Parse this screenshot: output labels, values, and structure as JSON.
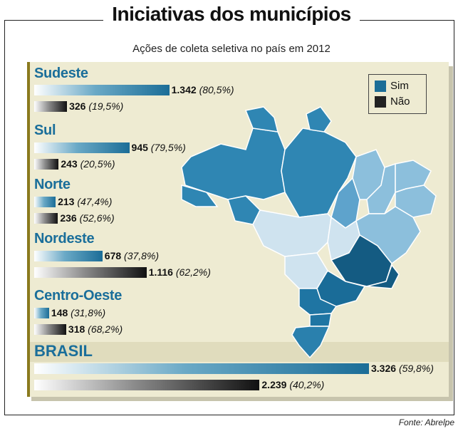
{
  "title": "Iniciativas dos municípios",
  "subtitle": "Ações de coleta seletiva no país em 2012",
  "source": "Fonte: Abrelpe",
  "legend": {
    "sim": "Sim",
    "nao": "Não"
  },
  "colors": {
    "sim": "#1b6d97",
    "nao": "#111111",
    "region_label": "#1a6e9a",
    "panel": "#eeebd2"
  },
  "chart_data": {
    "type": "bar",
    "orientation": "horizontal",
    "title": "Iniciativas dos municípios",
    "subtitle": "Ações de coleta seletiva no país em 2012",
    "categories": [
      "Sudeste",
      "Sul",
      "Norte",
      "Nordeste",
      "Centro-Oeste",
      "BRASIL"
    ],
    "series": [
      {
        "name": "Sim",
        "values": [
          1342,
          945,
          213,
          678,
          148,
          3326
        ],
        "labels": [
          "1.342",
          "945",
          "213",
          "678",
          "148",
          "3.326"
        ],
        "percent_labels": [
          "(80,5%)",
          "(79,5%)",
          "(47,4%)",
          "(37,8%)",
          "(31,8%)",
          "(59,8%)"
        ]
      },
      {
        "name": "Não",
        "values": [
          326,
          243,
          236,
          1116,
          318,
          2239
        ],
        "labels": [
          "326",
          "243",
          "236",
          "1.116",
          "318",
          "2.239"
        ],
        "percent_labels": [
          "(19,5%)",
          "(20,5%)",
          "(52,6%)",
          "(62,2%)",
          "(68,2%)",
          "(40,2%)"
        ]
      }
    ],
    "legend_position": "top-right",
    "grid": false
  }
}
